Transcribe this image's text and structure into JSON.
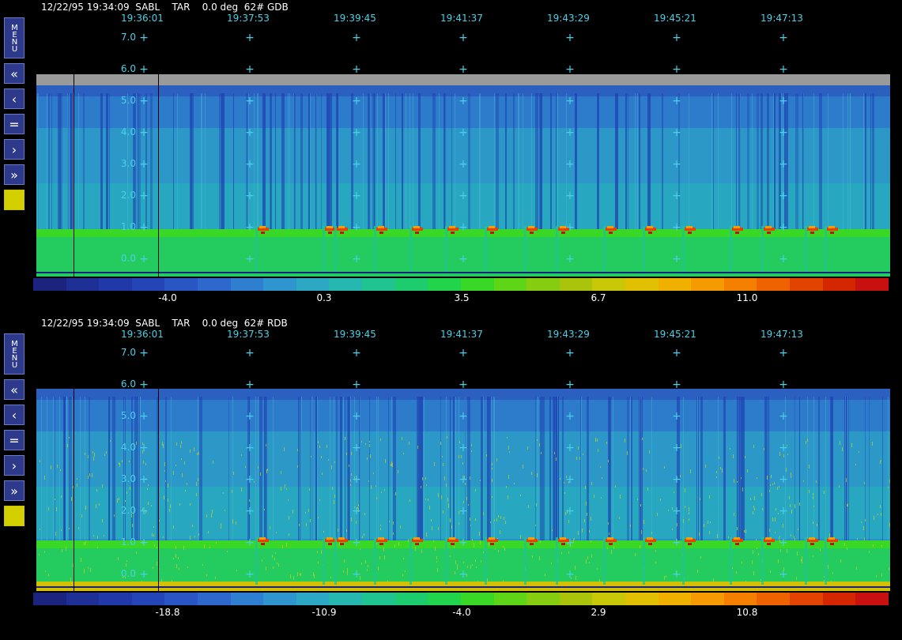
{
  "panels": [
    {
      "header": "12/22/95 19:34:09  SABL    TAR    0.0 deg  62# GDB",
      "times": [
        "19:36:01",
        "19:37:53",
        "19:39:45",
        "19:41:37",
        "19:43:29",
        "19:45:21",
        "19:47:13"
      ],
      "altitudes": [
        "7.0",
        "6.0",
        "5.0",
        "4.0",
        "3.0",
        "2.0",
        "1.0",
        "0.0"
      ],
      "colorbar_labels": [
        "-4.0",
        "0.3",
        "3.5",
        "6.7",
        "11.0"
      ]
    },
    {
      "header": "12/22/95 19:34:09  SABL    TAR    0.0 deg  62# RDB",
      "times": [
        "19:36:01",
        "19:37:53",
        "19:39:45",
        "19:41:37",
        "19:43:29",
        "19:45:21",
        "19:47:13"
      ],
      "altitudes": [
        "7.0",
        "6.0",
        "5.0",
        "4.0",
        "3.0",
        "2.0",
        "1.0",
        "0.0"
      ],
      "colorbar_labels": [
        "-18.8",
        "-10.9",
        "-4.0",
        "2.9",
        "10.8"
      ]
    }
  ],
  "sidebar": {
    "menu_label": "MENU",
    "buttons": [
      "«",
      "‹",
      "=",
      "›",
      "»"
    ]
  },
  "colors": {
    "label_cyan": "#4ad0e8",
    "button_blue": "#2d3a8c",
    "button_yellow": "#d4d000",
    "colormap": [
      "#1a237e",
      "#1e2f96",
      "#2138a8",
      "#2445b8",
      "#2a55c4",
      "#2e68cc",
      "#2f7fd0",
      "#2f95cf",
      "#2ca8c4",
      "#26b8b0",
      "#20c490",
      "#1ecc70",
      "#22d44c",
      "#3ad826",
      "#5fd518",
      "#86cc10",
      "#aac40c",
      "#c8c808",
      "#e0c000",
      "#f0b000",
      "#f59a00",
      "#f58000",
      "#ef6200",
      "#e24400",
      "#d42600",
      "#c81010"
    ]
  }
}
